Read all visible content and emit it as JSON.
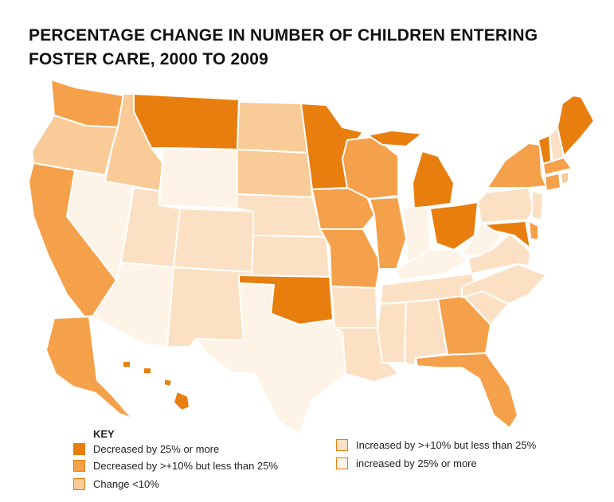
{
  "title": {
    "line1": "PERCENTAGE CHANGE IN NUMBER OF CHILDREN ENTERING",
    "line2": "FOSTER CARE, 2000 TO 2009"
  },
  "key": {
    "title": "KEY",
    "items": [
      {
        "id": "dec25",
        "label": "Decreased by 25% or more",
        "color": "#E87E0E"
      },
      {
        "id": "dec10",
        "label": "Decreased by >+10% but less than 25%",
        "color": "#F5A04A"
      },
      {
        "id": "flat",
        "label": "Change <10%",
        "color": "#F9CB98"
      },
      {
        "id": "inc10",
        "label": "Increased by >+10% but less than 25%",
        "color": "#FBE0C3"
      },
      {
        "id": "inc25",
        "label": "increased by 25% or more",
        "color": "#FEF3E7"
      }
    ]
  },
  "states": {
    "WA": "dec10",
    "OR": "flat",
    "CA": "dec10",
    "ID": "flat",
    "NV": "inc25",
    "AZ": "inc25",
    "MT": "dec25",
    "WY": "inc25",
    "UT": "inc10",
    "CO": "inc10",
    "NM": "inc10",
    "ND": "flat",
    "SD": "flat",
    "NE": "inc10",
    "KS": "inc10",
    "OK": "dec25",
    "TX": "inc25",
    "MN": "dec25",
    "IA": "dec10",
    "MO": "dec10",
    "AR": "inc10",
    "LA": "inc10",
    "WI": "dec10",
    "IL": "dec10",
    "MI": "dec25",
    "IN": "inc25",
    "OH": "dec25",
    "KY": "inc25",
    "TN": "inc10",
    "MS": "inc10",
    "AL": "inc10",
    "GA": "dec10",
    "FL": "dec10",
    "SC": "inc10",
    "NC": "inc10",
    "VA": "inc10",
    "WV": "inc25",
    "PA": "inc10",
    "NY": "dec10",
    "ME": "dec25",
    "VT": "dec25",
    "NH": "inc10",
    "MA": "dec10",
    "CT": "dec10",
    "RI": "flat",
    "NJ": "inc10",
    "MD": "dec25",
    "DE": "dec10",
    "AK": "dec10",
    "HI": "dec25"
  }
}
